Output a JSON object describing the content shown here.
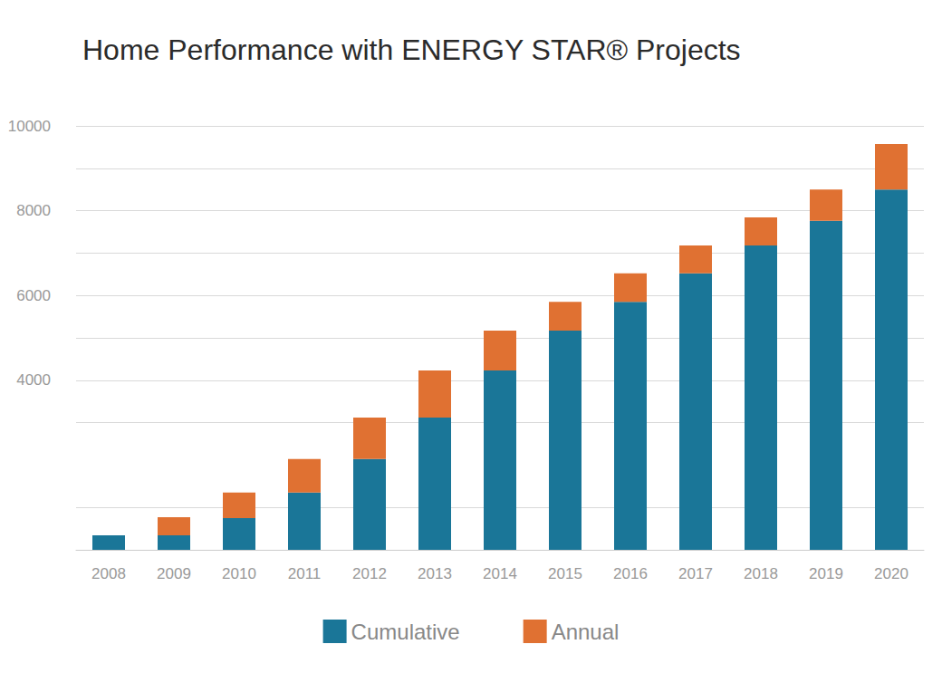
{
  "chart_data": {
    "type": "bar",
    "title": "Home Performance with ENERGY STAR® Projects",
    "categories": [
      "2008",
      "2009",
      "2010",
      "2011",
      "2012",
      "2013",
      "2014",
      "2015",
      "2016",
      "2017",
      "2018",
      "2019",
      "2020"
    ],
    "series": [
      {
        "name": "Cumulative",
        "color": "#1a7698",
        "values": [
          340,
          340,
          750,
          1350,
          2140,
          3120,
          4230,
          5170,
          5850,
          6520,
          7180,
          7760,
          8500
        ]
      },
      {
        "name": "Annual",
        "color": "#e07132",
        "values": [
          null,
          430,
          600,
          790,
          980,
          1110,
          940,
          680,
          670,
          660,
          660,
          740,
          1070
        ]
      }
    ],
    "stacked": true,
    "ylim": [
      0,
      10000
    ],
    "yticks": [
      4000,
      6000,
      8000,
      10000
    ],
    "grid": true,
    "legend": "bottom"
  }
}
